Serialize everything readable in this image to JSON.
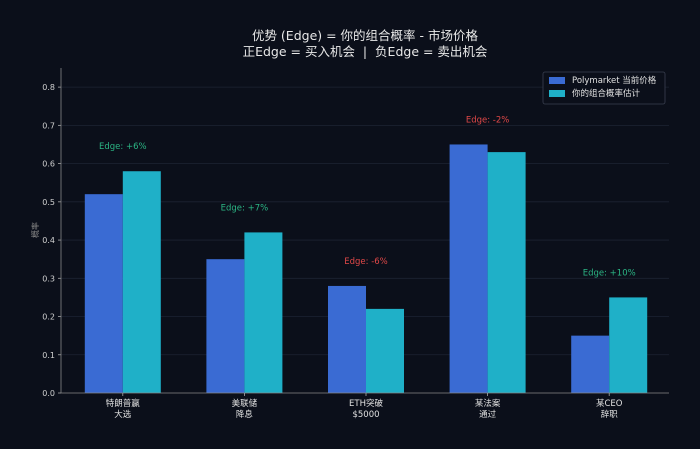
{
  "chart_data": {
    "type": "bar",
    "title_line1": "优势 (Edge) = 你的组合概率 - 市场价格",
    "title_line2": "正Edge = 买入机会  |  负Edge = 卖出机会",
    "xlabel": "",
    "ylabel": "概率",
    "ylim": [
      0,
      0.85
    ],
    "yticks": [
      "0.0",
      "0.1",
      "0.2",
      "0.3",
      "0.4",
      "0.5",
      "0.6",
      "0.7",
      "0.8"
    ],
    "grid": true,
    "legend_position": "top-right",
    "categories": [
      [
        "特朗普赢",
        "大选"
      ],
      [
        "美联储",
        "降息"
      ],
      [
        "ETH突破",
        "$5000"
      ],
      [
        "某法案",
        "通过"
      ],
      [
        "某CEO",
        "辞职"
      ]
    ],
    "series": [
      {
        "name": "Polymarket 当前价格",
        "color": "#3a6bd3",
        "values": [
          0.52,
          0.35,
          0.28,
          0.65,
          0.15
        ]
      },
      {
        "name": "你的组合概率估计",
        "color": "#1fb0c8",
        "values": [
          0.58,
          0.42,
          0.22,
          0.63,
          0.25
        ]
      }
    ],
    "annotations": [
      "Edge: +6%",
      "Edge: +7%",
      "Edge: -6%",
      "Edge: -2%",
      "Edge: +10%"
    ],
    "colors": {
      "positive": "#2bb584",
      "negative": "#e04848",
      "background": "#0b0f1a"
    }
  }
}
